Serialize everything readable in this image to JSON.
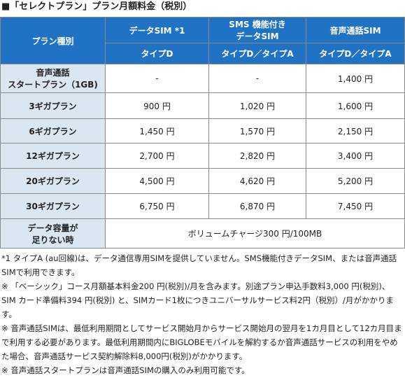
{
  "header": {
    "title": "■「セレクトプラン」プラン月額料金（税別）"
  },
  "table": {
    "corner": "プラン種別",
    "columns": [
      "データSIM *1",
      "SMS 機能付き\nデータSIM",
      "音声通話SIM"
    ],
    "types": [
      "タイプD",
      "タイプD／タイプA",
      "タイプD／タイプA"
    ],
    "rows": [
      [
        "音声通話\nスタートプラン（1GB)",
        "-",
        "-",
        "1,400 円"
      ],
      [
        "3ギガプラン",
        "900 円",
        "1,020 円",
        "1,600 円"
      ],
      [
        "6ギガプラン",
        "1,450 円",
        "1,570 円",
        "2,150 円"
      ],
      [
        "12ギガプラン",
        "2,700 円",
        "2,820 円",
        "3,400 円"
      ],
      [
        "20ギガプラン",
        "4,500 円",
        "4,620 円",
        "5,200 円"
      ],
      [
        "30ギガプラン",
        "6,750 円",
        "6,870 円",
        "7,450 円"
      ]
    ],
    "extra": [
      "データ容量が\n足りない時",
      "ボリュームチャージ300 円/100MB"
    ]
  },
  "notes": [
    "*1 タイプA (au回線)は、データ通信専用SIMを提供していません。SMS機能付きデータSIM、または音声通話SIMで利用できます。",
    "※ 「ベーシック」コース月額基本料金200 円(税別)/月を含みます。別途プラン申込手数料3,000 円(税別)、SIM カード準備料394 円(税別) と、SIMカード1枚につきユニバーサルサービス料2円（税別）/月がかかります。",
    "※ 音声通話SIMは、最低利用期間としてサービス開始月からサービス開始月の翌月を1カ月目として12カ月目まで利用する必要があります。最低利用期間内にBIGLOBEモバイルを解約するか音声通話サービスの利用をやめた場合、音声通話サービス契約解除料8,000円(税別)がかかります。",
    "※ 音声通話スタートプランは音声通話SIMの購入のみ利用可能です。"
  ]
}
